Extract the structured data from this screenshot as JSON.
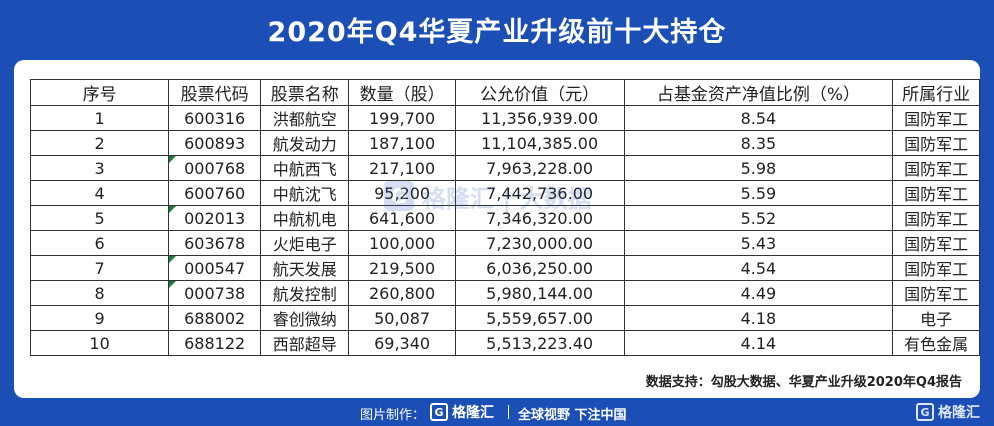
{
  "title": "2020年Q4华夏产业升级前十大持仓",
  "table": {
    "headers": [
      "序号",
      "股票代码",
      "股票名称",
      "数量（股）",
      "公允价值（元）",
      "占基金资产净值比例（%）",
      "所属行业"
    ],
    "rows": [
      {
        "no": "1",
        "code": "600316",
        "name": "洪都航空",
        "qty": "199,700",
        "value": "11,356,939.00",
        "pct": "8.54",
        "industry": "国防军工",
        "flag": false
      },
      {
        "no": "2",
        "code": "600893",
        "name": "航发动力",
        "qty": "187,100",
        "value": "11,104,385.00",
        "pct": "8.35",
        "industry": "国防军工",
        "flag": false
      },
      {
        "no": "3",
        "code": "000768",
        "name": "中航西飞",
        "qty": "217,100",
        "value": "7,963,228.00",
        "pct": "5.98",
        "industry": "国防军工",
        "flag": true
      },
      {
        "no": "4",
        "code": "600760",
        "name": "中航沈飞",
        "qty": "95,200",
        "value": "7,442,736.00",
        "pct": "5.59",
        "industry": "国防军工",
        "flag": false
      },
      {
        "no": "5",
        "code": "002013",
        "name": "中航机电",
        "qty": "641,600",
        "value": "7,346,320.00",
        "pct": "5.52",
        "industry": "国防军工",
        "flag": true
      },
      {
        "no": "6",
        "code": "603678",
        "name": "火炬电子",
        "qty": "100,000",
        "value": "7,230,000.00",
        "pct": "5.43",
        "industry": "国防军工",
        "flag": false
      },
      {
        "no": "7",
        "code": "000547",
        "name": "航天发展",
        "qty": "219,500",
        "value": "6,036,250.00",
        "pct": "4.54",
        "industry": "国防军工",
        "flag": true
      },
      {
        "no": "8",
        "code": "000738",
        "name": "航发控制",
        "qty": "260,800",
        "value": "5,980,144.00",
        "pct": "4.49",
        "industry": "国防军工",
        "flag": true
      },
      {
        "no": "9",
        "code": "688002",
        "name": "睿创微纳",
        "qty": "50,087",
        "value": "5,559,657.00",
        "pct": "4.18",
        "industry": "电子",
        "flag": false
      },
      {
        "no": "10",
        "code": "688122",
        "name": "西部超导",
        "qty": "69,340",
        "value": "5,513,223.40",
        "pct": "4.14",
        "industry": "有色金属",
        "flag": false
      }
    ]
  },
  "source": "数据支持：勾股大数据、华夏产业升级2020年Q4报告",
  "watermark": {
    "logo": "G",
    "text": "格隆汇 | 大数据"
  },
  "footer": {
    "made_by": "图片制作：",
    "logo_text": "格隆汇",
    "slogan": "全球视野 下注中国",
    "right_logo_text": "格隆汇"
  },
  "colors": {
    "background": "#1b4fb6",
    "card": "#ffffff",
    "flag": "#1e7a3a"
  }
}
